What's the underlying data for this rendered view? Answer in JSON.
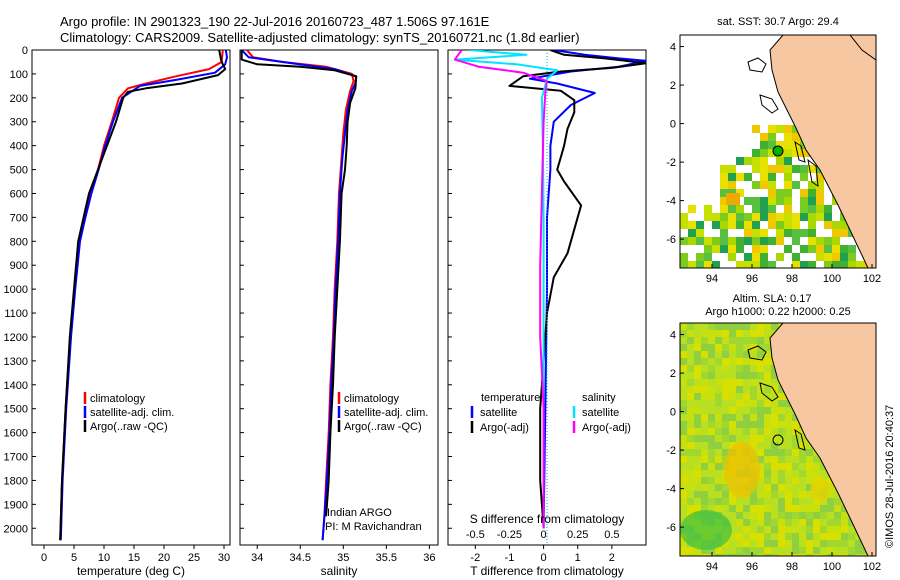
{
  "header": {
    "line1": "Argo profile: IN 2901323_190 22-Jul-2016 20160723_487 1.506S 97.161E",
    "line2": "Climatology: CARS2009. Satellite-adjusted climatology: synTS_20160721.nc (1.8d earlier)"
  },
  "colors": {
    "climatology": "#ff0000",
    "satellite": "#0000ff",
    "argo": "#000000",
    "s_satellite": "#00e5ff",
    "s_argo": "#ff00ff",
    "land": "#f7c7a2",
    "sea_bg": "#ffffff"
  },
  "chart_data": [
    {
      "id": "temperature",
      "type": "line",
      "xlabel": "temperature (deg C)",
      "ylabel": "",
      "xlim": [
        -2,
        31
      ],
      "ylim": [
        2070,
        0
      ],
      "x_ticks": [
        "0",
        "5",
        "10",
        "15",
        "20",
        "25",
        "30"
      ],
      "x_tick_values": [
        0,
        5,
        10,
        15,
        20,
        25,
        30
      ],
      "y_ticks": [
        "0",
        "100",
        "200",
        "300",
        "400",
        "500",
        "600",
        "700",
        "800",
        "900",
        "1000",
        "1100",
        "1200",
        "1300",
        "1400",
        "1500",
        "1600",
        "1700",
        "1800",
        "1900",
        "2000"
      ],
      "y_tick_values": [
        0,
        100,
        200,
        300,
        400,
        500,
        600,
        700,
        800,
        900,
        1000,
        1100,
        1200,
        1300,
        1400,
        1500,
        1600,
        1700,
        1800,
        1900,
        2000
      ],
      "legend": [
        "climatology",
        "satellite-adj. clim.",
        "Argo(..raw -QC)"
      ],
      "series": [
        {
          "name": "climatology",
          "color": "#ff0000",
          "x": [
            29.8,
            29.6,
            27.5,
            22,
            17,
            14,
            12.5,
            11.3,
            10,
            9,
            7.8,
            6.8,
            5.9,
            5.1,
            4.4,
            3.6,
            3.0,
            2.7
          ],
          "y": [
            0,
            50,
            80,
            110,
            140,
            160,
            200,
            300,
            400,
            500,
            600,
            700,
            800,
            1000,
            1200,
            1500,
            1800,
            2050
          ]
        },
        {
          "name": "satellite-adj. clim.",
          "color": "#0000ff",
          "x": [
            30.3,
            30.5,
            30.2,
            28.5,
            22,
            16,
            13,
            11.5,
            10.2,
            9.1,
            7.9,
            6.9,
            6.0,
            5.2,
            4.5,
            3.7,
            3.1,
            2.8
          ],
          "y": [
            0,
            30,
            60,
            95,
            125,
            150,
            200,
            300,
            400,
            500,
            600,
            700,
            800,
            1000,
            1200,
            1500,
            1800,
            2050
          ]
        },
        {
          "name": "Argo(..raw -QC)",
          "color": "#000000",
          "x": [
            29.2,
            29.5,
            29.8,
            30.2,
            29.0,
            23,
            17,
            14,
            13.2,
            12,
            10.5,
            9,
            7.5,
            6.6,
            5.7,
            5.0,
            4.3,
            3.6,
            3.0,
            2.7
          ],
          "y": [
            0,
            40,
            60,
            80,
            105,
            140,
            160,
            175,
            200,
            300,
            400,
            500,
            600,
            700,
            800,
            1000,
            1200,
            1500,
            1800,
            2050
          ]
        }
      ]
    },
    {
      "id": "salinity",
      "type": "line",
      "xlabel": "salinity",
      "ylabel": "",
      "xlim": [
        33.8,
        36.1
      ],
      "ylim": [
        2070,
        0
      ],
      "x_ticks": [
        "34",
        "34.5",
        "35",
        "35.5",
        "36"
      ],
      "x_tick_values": [
        34,
        34.5,
        35,
        35.5,
        36
      ],
      "legend": [
        "climatology",
        "satellite-adj. clim.",
        "Argo(..raw -QC)"
      ],
      "annotations": [
        "Indian ARGO",
        "PI: M Ravichandran"
      ],
      "series": [
        {
          "name": "climatology",
          "color": "#ff0000",
          "x": [
            33.88,
            33.95,
            34.3,
            34.8,
            35.1,
            35.12,
            35.08,
            35.03,
            35.0,
            34.98,
            34.95,
            34.93,
            34.9,
            34.88,
            34.85,
            34.83,
            34.8,
            34.78,
            34.76
          ],
          "y": [
            0,
            30,
            50,
            70,
            100,
            130,
            170,
            250,
            350,
            450,
            600,
            800,
            1000,
            1200,
            1400,
            1600,
            1800,
            1950,
            2050
          ]
        },
        {
          "name": "satellite-adj. clim.",
          "color": "#0000ff",
          "x": [
            33.82,
            33.9,
            34.4,
            34.9,
            35.15,
            35.14,
            35.1,
            35.05,
            35.02,
            34.99,
            34.96,
            34.94,
            34.91,
            34.89,
            34.86,
            34.84,
            34.81,
            34.78,
            34.76
          ],
          "y": [
            0,
            30,
            55,
            80,
            110,
            140,
            170,
            250,
            350,
            450,
            600,
            800,
            1000,
            1200,
            1400,
            1600,
            1800,
            1950,
            2050
          ]
        },
        {
          "name": "Argo(..raw -QC)",
          "color": "#000000",
          "x": [
            33.82,
            33.82,
            34.0,
            34.5,
            34.9,
            35.15,
            35.14,
            35.08,
            35.05,
            35.04,
            35.02,
            34.98,
            34.96,
            34.93,
            34.9,
            34.88,
            34.85,
            34.83,
            34.8
          ],
          "y": [
            0,
            40,
            60,
            70,
            85,
            110,
            160,
            220,
            300,
            400,
            500,
            600,
            800,
            1000,
            1200,
            1400,
            1600,
            1800,
            1950
          ]
        }
      ]
    },
    {
      "id": "difference",
      "type": "line",
      "xlabel": "T difference from climatology",
      "x2label": "S difference from climatology",
      "xlim": [
        -2.8,
        3
      ],
      "ylim": [
        2070,
        0
      ],
      "x_ticks": [
        "-2",
        "-1",
        "0",
        "1",
        "2"
      ],
      "x_tick_values": [
        -2,
        -1,
        0,
        1,
        2
      ],
      "x2_ticks": [
        "-0.5",
        "-0.25",
        "0",
        "0.25",
        "0.5"
      ],
      "x2_tick_positions_T": [
        -2,
        -1,
        0,
        1,
        2
      ],
      "legend_temperature": [
        "satellite",
        "Argo(-adj)"
      ],
      "legend_salinity": [
        "satellite",
        "Argo(-adj)"
      ],
      "legend_headers": [
        "temperature",
        "salinity"
      ],
      "series": [
        {
          "name": "temperature satellite",
          "color": "#0000ff",
          "x": [
            0.3,
            1.2,
            2.2,
            3.0,
            2.2,
            0.8,
            -0.4,
            0.4,
            1.5,
            0.8,
            0.3,
            0.2,
            0.2,
            0.1,
            0.1,
            0.05,
            0.0
          ],
          "y": [
            0,
            20,
            35,
            45,
            70,
            90,
            120,
            140,
            180,
            230,
            300,
            400,
            500,
            700,
            1000,
            1500,
            2000
          ]
        },
        {
          "name": "temperature Argo(-adj)",
          "color": "#000000",
          "x": [
            0.2,
            0.6,
            1.8,
            3.0,
            2.0,
            0.5,
            -0.6,
            -1.0,
            0.5,
            0.9,
            0.9,
            0.7,
            0.6,
            0.5,
            0.4,
            0.6,
            1.1,
            0.9,
            0.7,
            0.3,
            0.1,
            0.0,
            -0.1,
            -0.1,
            0.0
          ],
          "y": [
            0,
            20,
            35,
            55,
            75,
            90,
            110,
            150,
            170,
            210,
            260,
            330,
            400,
            450,
            500,
            550,
            650,
            750,
            850,
            950,
            1100,
            1300,
            1500,
            1800,
            2000
          ]
        },
        {
          "name": "salinity satellite",
          "color": "#00e5ff",
          "x": [
            -2.2,
            -0.5,
            -2.6,
            -0.8,
            0.4,
            0.1,
            -0.05,
            -0.02,
            0.0,
            0.0,
            0.0,
            0.0
          ],
          "y": [
            0,
            20,
            40,
            60,
            85,
            120,
            200,
            400,
            700,
            1000,
            1500,
            2000
          ]
        },
        {
          "name": "salinity Argo(-adj)",
          "color": "#ff00ff",
          "x": [
            -2.4,
            -2.6,
            -1.9,
            -0.6,
            0.1,
            0.05,
            0.0,
            -0.05,
            -0.1,
            -0.1,
            0.0,
            0.0
          ],
          "y": [
            0,
            40,
            70,
            95,
            130,
            180,
            300,
            600,
            900,
            1200,
            1500,
            2000
          ]
        }
      ]
    },
    {
      "id": "sst_map",
      "type": "heatmap",
      "title": "sat. SST: 30.7  Argo: 29.4",
      "xlim": [
        92.4,
        102.2
      ],
      "ylim": [
        -7.5,
        4.6
      ],
      "x_ticks": [
        "94",
        "96",
        "98",
        "100",
        "102"
      ],
      "x_tick_values": [
        94,
        96,
        98,
        100,
        102
      ],
      "y_ticks": [
        "4",
        "2",
        "0",
        "-2",
        "-4",
        "-6"
      ],
      "y_tick_values": [
        4,
        2,
        0,
        -2,
        -4,
        -6
      ],
      "argo_location": [
        97.161,
        -1.506
      ]
    },
    {
      "id": "sla_map",
      "type": "heatmap",
      "title": "Altim. SLA: 0.17",
      "subtitle": "Argo h1000: 0.22 h2000: 0.25",
      "xlim": [
        92.4,
        102.2
      ],
      "ylim": [
        -7.5,
        4.6
      ],
      "x_ticks": [
        "94",
        "96",
        "98",
        "100",
        "102"
      ],
      "x_tick_values": [
        94,
        96,
        98,
        100,
        102
      ],
      "y_ticks": [
        "4",
        "2",
        "0",
        "-2",
        "-4",
        "-6"
      ],
      "y_tick_values": [
        4,
        2,
        0,
        -2,
        -4,
        -6
      ],
      "argo_location": [
        97.161,
        -1.506
      ]
    }
  ],
  "footer": {
    "credit": "©IMOS 28-Jul-2016 20:40:37"
  }
}
